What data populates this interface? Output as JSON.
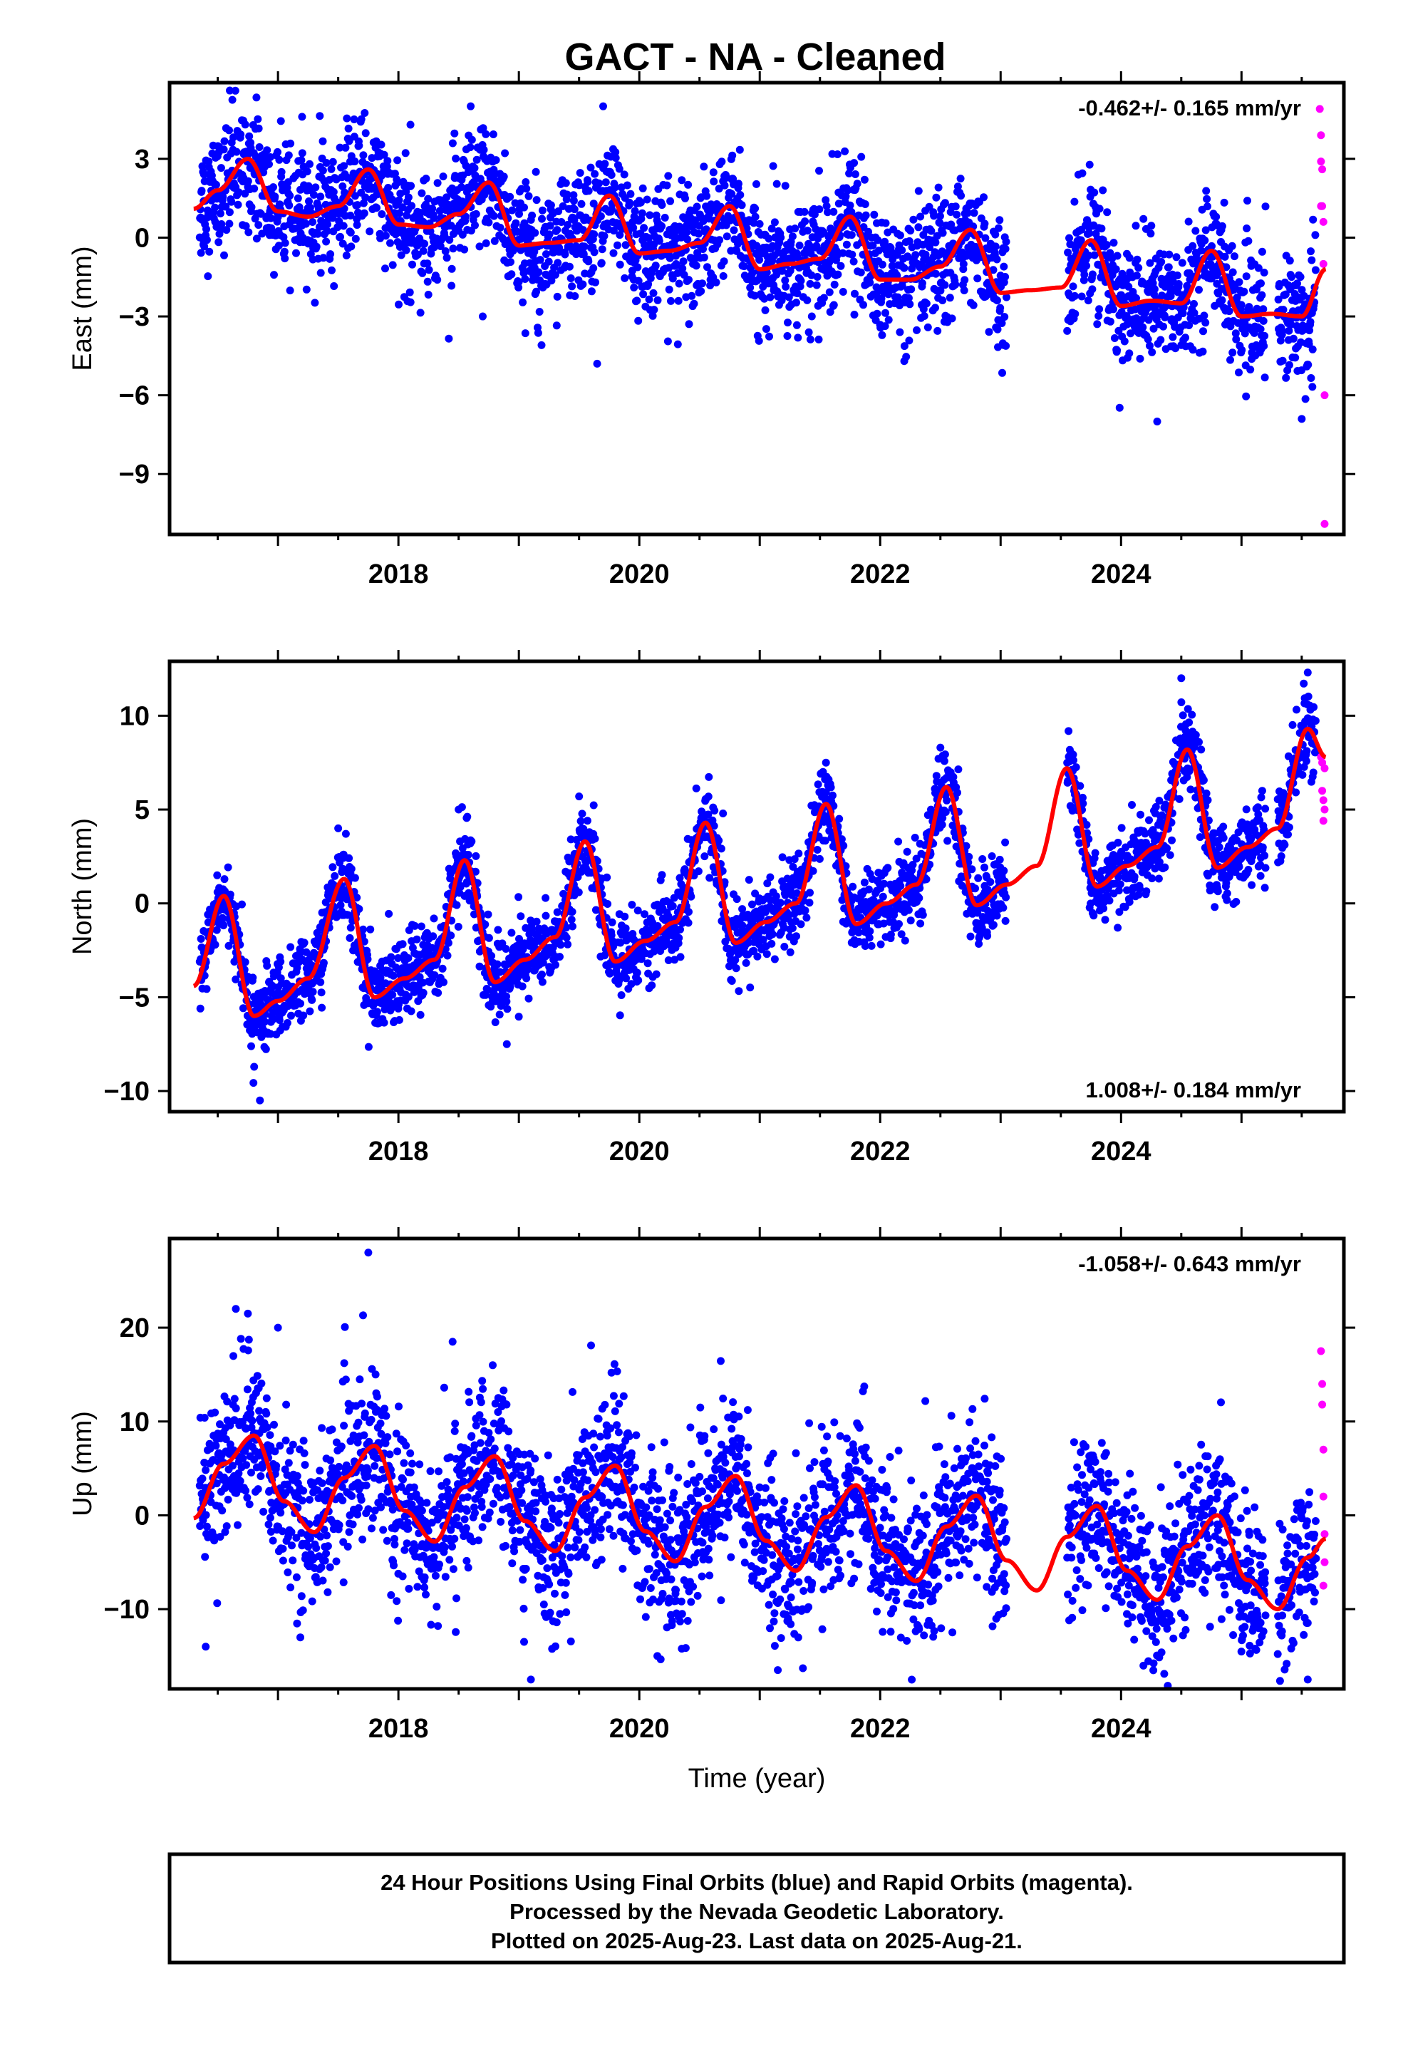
{
  "title": "GACT  - NA - Cleaned",
  "footer": {
    "line1": "24 Hour Positions Using Final Orbits (blue) and Rapid Orbits (magenta).",
    "line2": "Processed by the Nevada Geodetic Laboratory.",
    "line3": "Plotted on 2025-Aug-23. Last data on 2025-Aug-21."
  },
  "colors": {
    "final": "#0000ff",
    "rapid": "#ff00ff",
    "model": "#ff0000",
    "frame": "#000000"
  },
  "chart_data": [
    {
      "type": "scatter",
      "component": "East",
      "ylabel": "East (mm)",
      "xlabel": "",
      "xlim": [
        2016.1,
        2025.85
      ],
      "ylim": [
        -11.3,
        5.9
      ],
      "xticks": [
        2018,
        2020,
        2022,
        2024
      ],
      "yticks": [
        -9,
        -6,
        -3,
        0,
        3
      ],
      "rate_label": "-0.462+/- 0.165 mm/yr",
      "rate_position": "top-right",
      "model": {
        "x": [
          2016.3,
          2016.5,
          2016.75,
          2017.0,
          2017.25,
          2017.5,
          2017.75,
          2018.0,
          2018.25,
          2018.5,
          2018.75,
          2019.0,
          2019.25,
          2019.5,
          2019.75,
          2020.0,
          2020.25,
          2020.5,
          2020.75,
          2021.0,
          2021.25,
          2021.5,
          2021.75,
          2022.0,
          2022.25,
          2022.5,
          2022.75,
          2023.0,
          2023.25,
          2023.5,
          2023.75,
          2024.0,
          2024.25,
          2024.5,
          2024.75,
          2025.0,
          2025.25,
          2025.5,
          2025.7
        ],
        "y": [
          1.1,
          1.8,
          3.0,
          1.0,
          0.8,
          1.2,
          2.6,
          0.5,
          0.4,
          0.9,
          2.1,
          -0.3,
          -0.2,
          -0.1,
          1.6,
          -0.6,
          -0.5,
          -0.2,
          1.2,
          -1.2,
          -1.0,
          -0.8,
          0.8,
          -1.6,
          -1.6,
          -1.1,
          0.3,
          -2.1,
          -2.0,
          -1.9,
          -0.1,
          -2.6,
          -2.4,
          -2.5,
          -0.5,
          -3.0,
          -2.9,
          -3.0,
          -1.2
        ]
      },
      "final_orbits": {
        "start": 2016.35,
        "end": 2025.62,
        "gaps": [
          [
            2023.05,
            2023.55
          ],
          [
            2025.2,
            2025.3
          ]
        ],
        "scatter_sd": 1.15,
        "outliers": [
          [
            2016.6,
            5.6
          ],
          [
            2017.2,
            4.6
          ],
          [
            2018.1,
            4.3
          ],
          [
            2018.6,
            5.0
          ],
          [
            2019.7,
            5.0
          ],
          [
            2019.65,
            -4.8
          ],
          [
            2018.7,
            -3.0
          ],
          [
            2022.2,
            -4.7
          ],
          [
            2024.3,
            -7.0
          ],
          [
            2025.5,
            -6.9
          ]
        ]
      },
      "rapid_orbits": {
        "x": [
          2025.65,
          2025.66,
          2025.66,
          2025.67,
          2025.67,
          2025.68,
          2025.68,
          2025.69,
          2025.69,
          2025.66
        ],
        "y": [
          4.9,
          3.9,
          2.9,
          2.6,
          1.2,
          0.6,
          -1.0,
          -6.0,
          -10.9,
          1.2
        ]
      }
    },
    {
      "type": "scatter",
      "component": "North",
      "ylabel": "North (mm)",
      "xlabel": "",
      "xlim": [
        2016.1,
        2025.85
      ],
      "ylim": [
        -11.1,
        12.9
      ],
      "xticks": [
        2018,
        2020,
        2022,
        2024
      ],
      "yticks": [
        -10,
        -5,
        0,
        5,
        10
      ],
      "rate_label": "1.008+/- 0.184 mm/yr",
      "rate_position": "bottom-right",
      "model": {
        "x": [
          2016.3,
          2016.55,
          2016.8,
          2017.0,
          2017.25,
          2017.55,
          2017.8,
          2018.05,
          2018.3,
          2018.55,
          2018.8,
          2019.05,
          2019.3,
          2019.55,
          2019.8,
          2020.05,
          2020.3,
          2020.55,
          2020.8,
          2021.05,
          2021.3,
          2021.55,
          2021.8,
          2022.05,
          2022.3,
          2022.55,
          2022.8,
          2023.05,
          2023.3,
          2023.55,
          2023.8,
          2024.05,
          2024.3,
          2024.55,
          2024.8,
          2025.05,
          2025.3,
          2025.55,
          2025.7
        ],
        "y": [
          -4.4,
          0.4,
          -6.0,
          -5.2,
          -4.0,
          1.3,
          -5.0,
          -4.0,
          -3.0,
          2.3,
          -4.2,
          -3.0,
          -1.8,
          3.3,
          -3.1,
          -2.0,
          -1.0,
          4.3,
          -2.1,
          -1.0,
          0.0,
          5.3,
          -1.1,
          0.0,
          1.0,
          6.2,
          -0.1,
          1.0,
          2.0,
          7.2,
          0.9,
          2.0,
          3.0,
          8.2,
          1.9,
          3.0,
          4.0,
          9.3,
          7.8
        ]
      },
      "final_orbits": {
        "start": 2016.35,
        "end": 2025.62,
        "gaps": [
          [
            2023.05,
            2023.55
          ],
          [
            2025.2,
            2025.3
          ]
        ],
        "scatter_sd": 1.05,
        "outliers": [
          [
            2016.85,
            -10.5
          ],
          [
            2017.5,
            4.0
          ],
          [
            2018.5,
            5.0
          ],
          [
            2019.5,
            5.7
          ],
          [
            2021.55,
            7.5
          ],
          [
            2022.5,
            8.3
          ],
          [
            2024.5,
            12.0
          ],
          [
            2025.55,
            12.3
          ],
          [
            2018.9,
            -7.5
          ]
        ]
      },
      "rapid_orbits": {
        "x": [
          2025.66,
          2025.67,
          2025.67,
          2025.68,
          2025.68,
          2025.69,
          2025.69
        ],
        "y": [
          7.8,
          7.5,
          6.0,
          5.5,
          4.4,
          7.2,
          5.0
        ]
      }
    },
    {
      "type": "scatter",
      "component": "Up",
      "ylabel": "Up (mm)",
      "xlabel": "Time (year)",
      "xlim": [
        2016.1,
        2025.85
      ],
      "ylim": [
        -18.5,
        29.5
      ],
      "xticks": [
        2018,
        2020,
        2022,
        2024
      ],
      "yticks": [
        -10,
        0,
        10,
        20
      ],
      "rate_label": "-1.058+/- 0.643 mm/yr",
      "rate_position": "top-right",
      "model": {
        "x": [
          2016.3,
          2016.55,
          2016.8,
          2017.05,
          2017.3,
          2017.55,
          2017.8,
          2018.05,
          2018.3,
          2018.55,
          2018.8,
          2019.05,
          2019.3,
          2019.55,
          2019.8,
          2020.05,
          2020.3,
          2020.55,
          2020.8,
          2021.05,
          2021.3,
          2021.55,
          2021.8,
          2022.05,
          2022.3,
          2022.55,
          2022.8,
          2023.05,
          2023.3,
          2023.55,
          2023.8,
          2024.05,
          2024.3,
          2024.55,
          2024.8,
          2025.05,
          2025.3,
          2025.55,
          2025.7
        ],
        "y": [
          -0.3,
          5.5,
          8.5,
          1.5,
          -1.8,
          4.0,
          7.4,
          0.5,
          -2.8,
          3.0,
          6.3,
          -0.6,
          -3.8,
          1.9,
          5.3,
          -1.7,
          -4.9,
          0.9,
          4.2,
          -2.7,
          -5.9,
          -0.2,
          3.2,
          -3.8,
          -7.0,
          -1.2,
          2.1,
          -4.8,
          -8.0,
          -2.3,
          1.0,
          -5.9,
          -9.0,
          -3.3,
          0.0,
          -6.9,
          -10.0,
          -4.5,
          -2.5
        ]
      },
      "final_orbits": {
        "start": 2016.35,
        "end": 2025.62,
        "gaps": [
          [
            2023.05,
            2023.55
          ],
          [
            2025.2,
            2025.3
          ]
        ],
        "scatter_sd": 4.2,
        "outliers": [
          [
            2017.75,
            28.0
          ],
          [
            2016.65,
            22.0
          ],
          [
            2016.75,
            21.5
          ],
          [
            2017.0,
            20.0
          ],
          [
            2018.45,
            18.5
          ],
          [
            2019.1,
            -17.5
          ],
          [
            2021.15,
            -16.5
          ],
          [
            2025.55,
            -17.5
          ],
          [
            2016.4,
            -14.0
          ],
          [
            2020.15,
            -15.0
          ]
        ]
      },
      "rapid_orbits": {
        "x": [
          2025.66,
          2025.67,
          2025.67,
          2025.68,
          2025.68,
          2025.69,
          2025.69,
          2025.68
        ],
        "y": [
          17.5,
          14.0,
          11.8,
          7.0,
          2.0,
          -2.0,
          -5.0,
          -7.5
        ]
      }
    }
  ]
}
